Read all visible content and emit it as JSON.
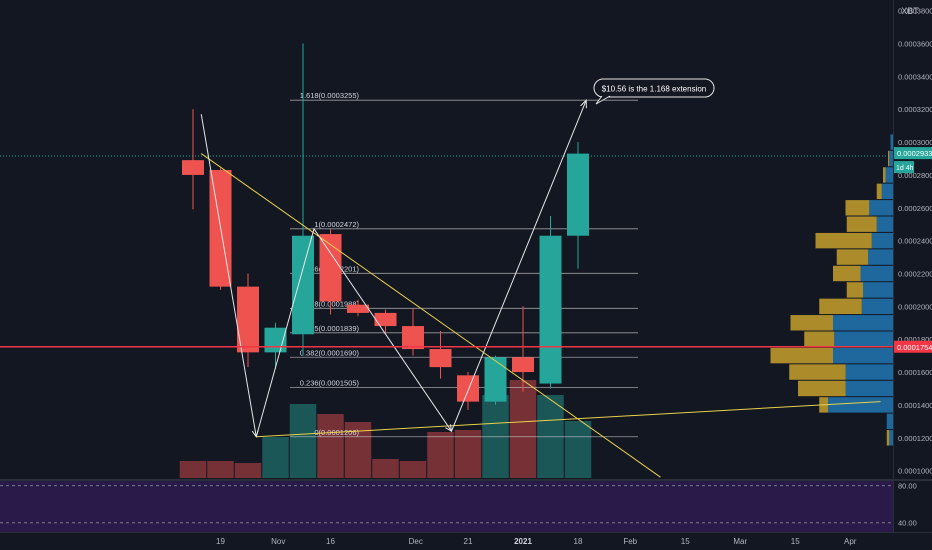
{
  "symbol_label": "XBT",
  "chart_data": {
    "type": "candlestick",
    "y_axis": {
      "ylim": [
        9.55e-05,
        0.0003865
      ],
      "ticks": [
        {
          "value": 0.0001,
          "label": "0.0001000"
        },
        {
          "value": 0.00012,
          "label": "0.0001200"
        },
        {
          "value": 0.00014,
          "label": "0.0001400"
        },
        {
          "value": 0.00016,
          "label": "0.0001600"
        },
        {
          "value": 0.00018,
          "label": "0.0001800"
        },
        {
          "value": 0.0002,
          "label": "0.0002000"
        },
        {
          "value": 0.00022,
          "label": "0.0002200"
        },
        {
          "value": 0.00024,
          "label": "0.0002400"
        },
        {
          "value": 0.00026,
          "label": "0.0002600"
        },
        {
          "value": 0.00028,
          "label": "0.0002800"
        },
        {
          "value": 0.0003,
          "label": "0.0003000"
        },
        {
          "value": 0.00032,
          "label": "0.0003200"
        },
        {
          "value": 0.00034,
          "label": "0.0003400"
        },
        {
          "value": 0.00036,
          "label": "0.0003600"
        },
        {
          "value": 0.00038,
          "label": "0.0003800"
        }
      ]
    },
    "x_axis": {
      "ticks": [
        {
          "week": 1.0,
          "label": "19"
        },
        {
          "week": 3.1,
          "label": "Nov"
        },
        {
          "week": 5.0,
          "label": "16"
        },
        {
          "week": 8.1,
          "label": "Dec"
        },
        {
          "week": 10.0,
          "label": "21"
        },
        {
          "week": 12.0,
          "label": "2021",
          "bold": true
        },
        {
          "week": 14.0,
          "label": "18"
        },
        {
          "week": 15.9,
          "label": "Feb"
        },
        {
          "week": 17.9,
          "label": "15"
        },
        {
          "week": 19.9,
          "label": "Mar"
        },
        {
          "week": 21.9,
          "label": "15"
        },
        {
          "week": 23.9,
          "label": "Apr"
        }
      ]
    },
    "candles": [
      {
        "open": 0.000289,
        "high": 0.00032,
        "low": 0.000259,
        "close": 0.00028
      },
      {
        "open": 0.000283,
        "high": 0.000284,
        "low": 0.00021,
        "close": 0.000212
      },
      {
        "open": 0.000212,
        "high": 0.00022,
        "low": 0.000163,
        "close": 0.000172
      },
      {
        "open": 0.000172,
        "high": 0.00019,
        "low": 0.000162,
        "close": 0.000187
      },
      {
        "open": 0.000183,
        "high": 0.00036,
        "low": 0.00017,
        "close": 0.000243
      },
      {
        "open": 0.000244,
        "high": 0.000247,
        "low": 0.000195,
        "close": 0.000203
      },
      {
        "open": 0.000201,
        "high": 0.000204,
        "low": 0.000194,
        "close": 0.000196
      },
      {
        "open": 0.000196,
        "high": 0.000198,
        "low": 0.000184,
        "close": 0.000188
      },
      {
        "open": 0.000188,
        "high": 0.000199,
        "low": 0.00017,
        "close": 0.000174
      },
      {
        "open": 0.000174,
        "high": 0.000185,
        "low": 0.000156,
        "close": 0.000163
      },
      {
        "open": 0.000158,
        "high": 0.00016,
        "low": 0.000137,
        "close": 0.000142
      },
      {
        "open": 0.000142,
        "high": 0.00017,
        "low": 0.00014,
        "close": 0.000169
      },
      {
        "open": 0.000169,
        "high": 0.0002,
        "low": 0.000148,
        "close": 0.00016
      },
      {
        "open": 0.000153,
        "high": 0.000255,
        "low": 0.00015,
        "close": 0.000243
      },
      {
        "open": 0.000243,
        "high": 0.0003,
        "low": 0.000223,
        "close": 0.000293
      }
    ],
    "volume_levels": [
      0.17,
      0.17,
      0.15,
      0.41,
      0.74,
      0.64,
      0.56,
      0.19,
      0.17,
      0.46,
      0.48,
      0.83,
      0.98,
      0.83,
      0.57
    ],
    "fib_retracement": {
      "color": "#d6d6d6",
      "levels": [
        {
          "label": "1.618(0.0003255)",
          "value": 0.0003255
        },
        {
          "label": "1(0.0002472)",
          "value": 0.0002472
        },
        {
          "label": "0.786(0.0002201)",
          "value": 0.0002201
        },
        {
          "label": "0.618(0.0001988)",
          "value": 0.0001988
        },
        {
          "label": "0.5(0.0001839)",
          "value": 0.0001839
        },
        {
          "label": "0.382(0.0001690)",
          "value": 0.000169
        },
        {
          "label": "0.236(0.0001505)",
          "value": 0.0001505
        },
        {
          "label": "0(0.0001206)",
          "value": 0.0001206
        }
      ]
    },
    "wave_path": [
      {
        "week": 0.3,
        "value": 0.000317
      },
      {
        "week": 2.3,
        "value": 0.0001206
      },
      {
        "week": 4.4,
        "value": 0.0002472
      },
      {
        "week": 9.4,
        "value": 0.000124
      },
      {
        "week": 14.3,
        "value": 0.0003255
      }
    ],
    "trendlines": [
      {
        "name": "descending",
        "color": "#e8d24a",
        "from": {
          "week": 0.3,
          "value": 0.000293
        },
        "to": {
          "week": 17.0,
          "value": 9.6e-05
        }
      },
      {
        "name": "ascending",
        "color": "#e8d24a",
        "from": {
          "week": 2.3,
          "value": 0.0001206
        },
        "to": {
          "week": 25.0,
          "value": 0.000142
        }
      }
    ],
    "horizontal_line": {
      "value": 0.0001754,
      "color": "#f23645"
    },
    "price_labels": [
      {
        "text": "0.0002933",
        "value": 0.0002933,
        "color": "#26a69a"
      },
      {
        "text": "0.0001754",
        "value": 0.0001754,
        "color": "#f23645"
      }
    ],
    "timeframe_label": "1d 4h",
    "annotation": "$10.56  is the 1.168 extension",
    "volume_profile": {
      "rows": [
        {
          "value": 0.0003,
          "up": 0.02,
          "down": 0.0
        },
        {
          "value": 0.00029,
          "up": 0.03,
          "down": 0.01
        },
        {
          "value": 0.00028,
          "up": 0.06,
          "down": 0.02
        },
        {
          "value": 0.00027,
          "up": 0.09,
          "down": 0.04
        },
        {
          "value": 0.00026,
          "up": 0.19,
          "down": 0.19
        },
        {
          "value": 0.00025,
          "up": 0.13,
          "down": 0.24
        },
        {
          "value": 0.00024,
          "up": 0.17,
          "down": 0.45
        },
        {
          "value": 0.00023,
          "up": 0.2,
          "down": 0.25
        },
        {
          "value": 0.00022,
          "up": 0.26,
          "down": 0.22
        },
        {
          "value": 0.00021,
          "up": 0.24,
          "down": 0.13
        },
        {
          "value": 0.0002,
          "up": 0.25,
          "down": 0.34
        },
        {
          "value": 0.00019,
          "up": 0.48,
          "down": 0.34
        },
        {
          "value": 0.00018,
          "up": 0.47,
          "down": 0.24
        },
        {
          "value": 0.00017,
          "up": 0.48,
          "down": 0.5
        },
        {
          "value": 0.00016,
          "up": 0.38,
          "down": 0.45
        },
        {
          "value": 0.00015,
          "up": 0.38,
          "down": 0.38
        },
        {
          "value": 0.00014,
          "up": 0.52,
          "down": 0.07
        },
        {
          "value": 0.00013,
          "up": 0.05,
          "down": 0.0
        },
        {
          "value": 0.00012,
          "up": 0.03,
          "down": 0.02
        }
      ]
    },
    "indicator": {
      "ylim": [
        30,
        85
      ],
      "ticks": [
        {
          "value": 80,
          "label": "80.00"
        },
        {
          "value": 40,
          "label": "40.00"
        }
      ],
      "bands": [
        80,
        40
      ]
    },
    "colors": {
      "up": "#26a69a",
      "down": "#ef5350",
      "volume_up": "#26a69a",
      "volume_down": "#ef5350",
      "profile_up": "#2177b3",
      "profile_down": "#c7a02c",
      "indicator_bg": "#2a1a4a"
    }
  }
}
